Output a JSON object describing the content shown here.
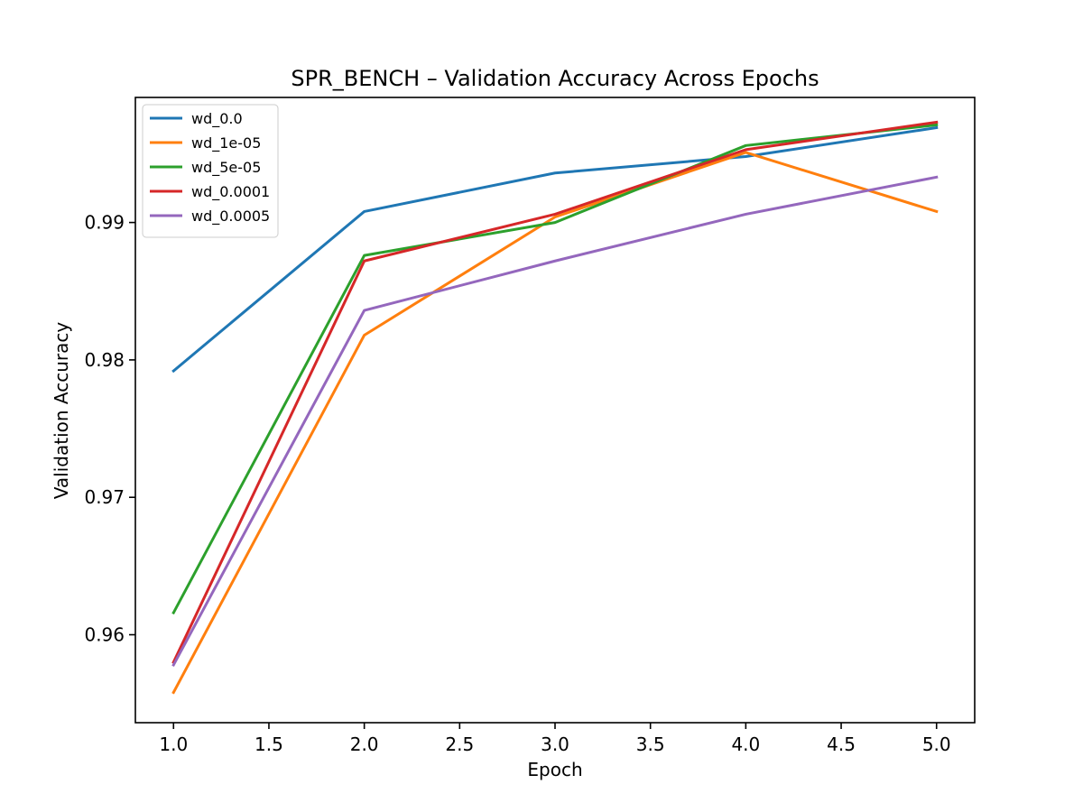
{
  "chart_data": {
    "type": "line",
    "title": "SPR_BENCH – Validation Accuracy Across Epochs",
    "xlabel": "Epoch",
    "ylabel": "Validation Accuracy",
    "xlim": [
      0.8,
      5.2
    ],
    "ylim": [
      0.9536,
      0.9991
    ],
    "xticks": [
      1.0,
      1.5,
      2.0,
      2.5,
      3.0,
      3.5,
      4.0,
      4.5,
      5.0
    ],
    "xtick_labels": [
      "1.0",
      "1.5",
      "2.0",
      "2.5",
      "3.0",
      "3.5",
      "4.0",
      "4.5",
      "5.0"
    ],
    "yticks": [
      0.96,
      0.97,
      0.98,
      0.99
    ],
    "ytick_labels": [
      "0.96",
      "0.97",
      "0.98",
      "0.99"
    ],
    "grid": false,
    "legend": "top-left",
    "x": [
      1,
      2,
      3,
      4,
      5
    ],
    "series": [
      {
        "name": "wd_0.0",
        "color": "#1f77b4",
        "values": [
          0.9792,
          0.9908,
          0.9936,
          0.9948,
          0.9969
        ]
      },
      {
        "name": "wd_1e-05",
        "color": "#ff7f0e",
        "values": [
          0.9558,
          0.9818,
          0.9904,
          0.9951,
          0.9908
        ]
      },
      {
        "name": "wd_5e-05",
        "color": "#2ca02c",
        "values": [
          0.9616,
          0.9876,
          0.99,
          0.9956,
          0.9971
        ]
      },
      {
        "name": "wd_0.0001",
        "color": "#d62728",
        "values": [
          0.958,
          0.9872,
          0.9906,
          0.9953,
          0.9973
        ]
      },
      {
        "name": "wd_0.0005",
        "color": "#9467bd",
        "values": [
          0.9578,
          0.9836,
          0.9872,
          0.9906,
          0.9933
        ]
      }
    ]
  }
}
